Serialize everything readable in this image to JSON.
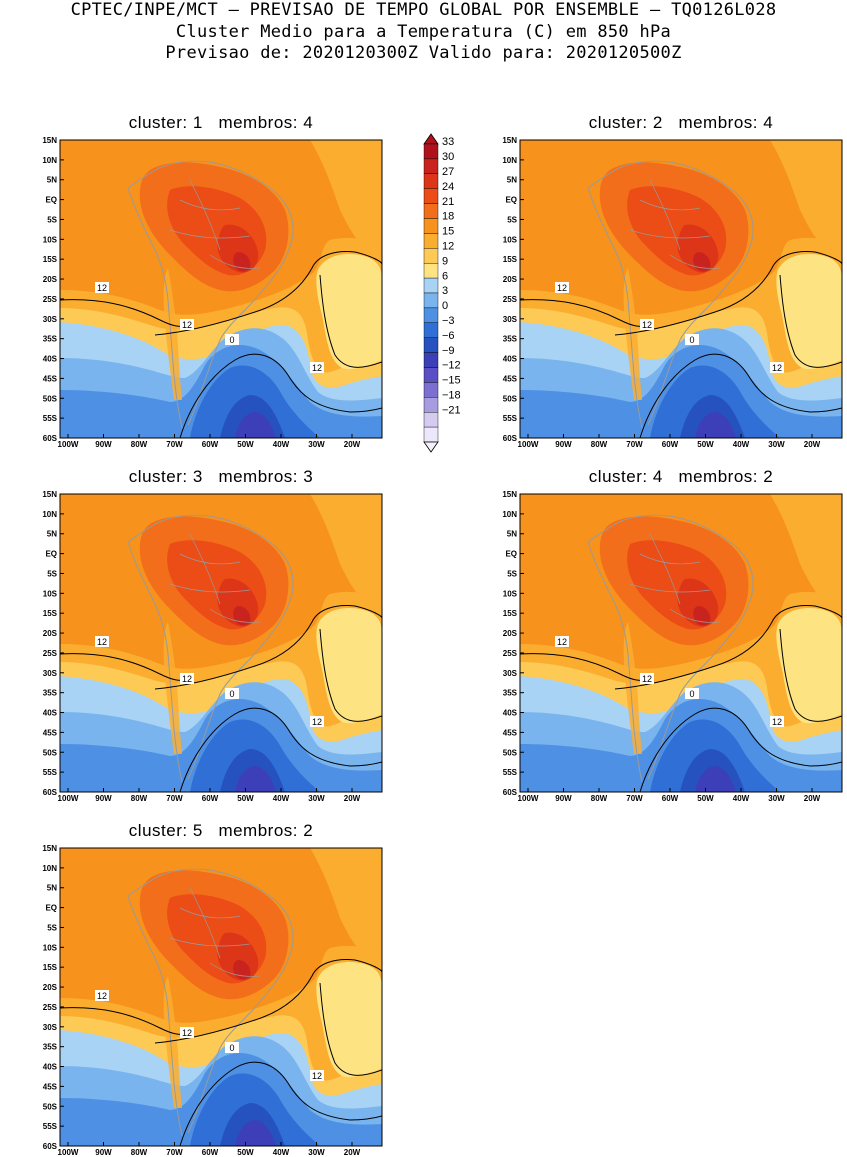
{
  "header": {
    "line1": "CPTEC/INPE/MCT – PREVISAO DE TEMPO GLOBAL POR ENSEMBLE – TQ0126L028",
    "line2": "Cluster Medio para a Temperatura (C) em 850 hPa",
    "line3": "Previsao de: 2020120300Z   Valido para: 2020120500Z"
  },
  "axes": {
    "lat_labels": [
      "15N",
      "10N",
      "5N",
      "EQ",
      "5S",
      "10S",
      "15S",
      "20S",
      "25S",
      "30S",
      "35S",
      "40S",
      "45S",
      "50S",
      "55S",
      "60S"
    ],
    "lon_labels": [
      "100W",
      "90W",
      "80W",
      "70W",
      "60W",
      "50W",
      "40W",
      "30W",
      "20W"
    ]
  },
  "panels": [
    {
      "title": "cluster: 1   membros: 4",
      "contour_labels": [
        "12",
        "12",
        "12",
        "0"
      ]
    },
    {
      "title": "cluster: 2   membros: 4",
      "contour_labels": [
        "12",
        "12",
        "12",
        "0"
      ]
    },
    {
      "title": "cluster: 3   membros: 3",
      "contour_labels": [
        "12",
        "12",
        "12",
        "0"
      ]
    },
    {
      "title": "cluster: 4   membros: 2",
      "contour_labels": [
        "12",
        "12",
        "12",
        "0"
      ]
    },
    {
      "title": "cluster: 5   membros: 2",
      "contour_labels": [
        "12",
        "12",
        "12",
        "0"
      ]
    }
  ],
  "colorbar": {
    "labels": [
      "33",
      "30",
      "27",
      "24",
      "21",
      "18",
      "15",
      "12",
      "9",
      "6",
      "3",
      "0",
      "−3",
      "−6",
      "−9",
      "−12",
      "−15",
      "−18",
      "−21"
    ],
    "colors": [
      "#b0121b",
      "#c8231f",
      "#dd3518",
      "#ec4c15",
      "#f36e1a",
      "#f7921c",
      "#fbad30",
      "#fdca55",
      "#fde382",
      "#a8d3f4",
      "#79b4ee",
      "#4e90e4",
      "#2f6fd6",
      "#2652c0",
      "#3c3fb7",
      "#5a4fc5",
      "#7d6fd2",
      "#a89ce0",
      "#d3cbf0"
    ],
    "colors_below": [
      "#b0121b",
      "#c8231f",
      "#dd3518",
      "#ec4c15",
      "#f36e1a",
      "#f7921c",
      "#fbad30",
      "#fdca55",
      "#fde382",
      "#a8d3f4",
      "#79b4ee",
      "#4e90e4",
      "#2f6fd6",
      "#2652c0",
      "#3c3fb7",
      "#5a4fc5",
      "#7d6fd2",
      "#a89ce0",
      "#d3cbf0",
      "#ece7fa"
    ]
  }
}
